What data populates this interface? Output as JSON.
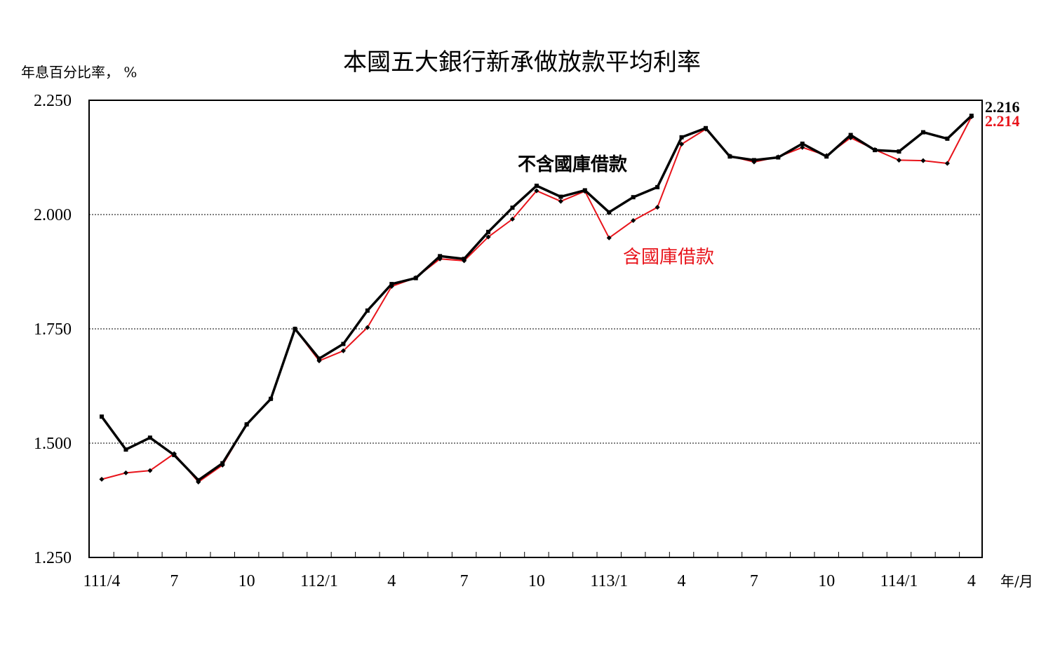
{
  "chart_data": {
    "type": "line",
    "title": "本國五大銀行新承做放款平均利率",
    "ylabel": "年息百分比率， %",
    "xlabel": "年/月",
    "ylim": [
      1.25,
      2.25
    ],
    "yticks": [
      "2.250",
      "2.000",
      "1.750",
      "1.500",
      "1.250"
    ],
    "grid": "horizontal dotted",
    "xtick_labels": [
      {
        "index": 0,
        "label": "111/4"
      },
      {
        "index": 3,
        "label": "7"
      },
      {
        "index": 6,
        "label": "10"
      },
      {
        "index": 9,
        "label": "112/1"
      },
      {
        "index": 12,
        "label": "4"
      },
      {
        "index": 15,
        "label": "7"
      },
      {
        "index": 18,
        "label": "10"
      },
      {
        "index": 21,
        "label": "113/1"
      },
      {
        "index": 24,
        "label": "4"
      },
      {
        "index": 27,
        "label": "7"
      },
      {
        "index": 30,
        "label": "10"
      },
      {
        "index": 33,
        "label": "114/1"
      },
      {
        "index": 36,
        "label": "4"
      }
    ],
    "series": [
      {
        "name": "不含國庫借款",
        "color": "#000000",
        "end_label": "2.216",
        "values": [
          1.558,
          1.486,
          1.512,
          1.474,
          1.419,
          1.456,
          1.541,
          1.597,
          1.75,
          1.685,
          1.717,
          1.79,
          1.848,
          1.861,
          1.909,
          1.903,
          1.962,
          2.015,
          2.063,
          2.039,
          2.053,
          2.005,
          2.038,
          2.06,
          2.169,
          2.189,
          2.127,
          2.119,
          2.125,
          2.155,
          2.127,
          2.174,
          2.141,
          2.138,
          2.18,
          2.166,
          2.216
        ]
      },
      {
        "name": "含國庫借款",
        "color": "#e8141b",
        "end_label": "2.214",
        "values": [
          1.421,
          1.435,
          1.44,
          1.477,
          1.415,
          1.452,
          1.541,
          1.597,
          1.75,
          1.68,
          1.702,
          1.753,
          1.843,
          1.862,
          1.903,
          1.899,
          1.951,
          1.99,
          2.052,
          2.029,
          2.051,
          1.949,
          1.987,
          2.016,
          2.154,
          2.187,
          2.128,
          2.115,
          2.126,
          2.147,
          2.129,
          2.168,
          2.142,
          2.119,
          2.118,
          2.112,
          2.214
        ]
      }
    ]
  }
}
